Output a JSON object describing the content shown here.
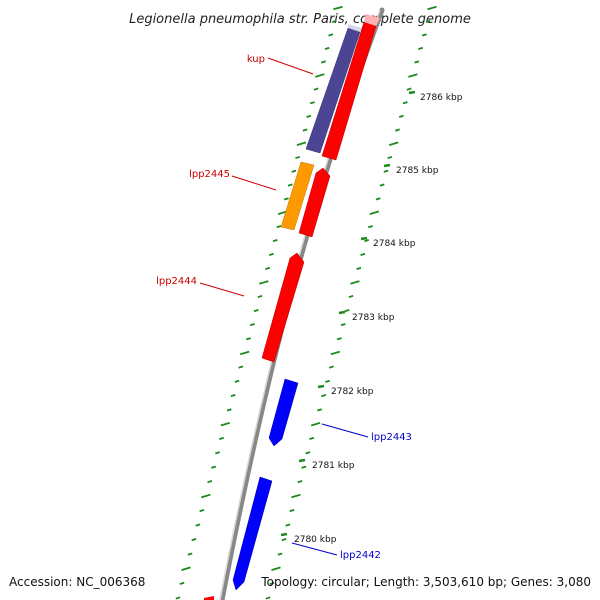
{
  "title": "Legionella pneumophila str. Paris, complete genome",
  "footer": {
    "accession": "Accession: NC_006368",
    "topology": "Topology: circular; Length: 3,503,610 bp; Genes: 3,080"
  },
  "colors": {
    "backbone": "#888888",
    "tick": "#1a8a1a",
    "forward_gene": "#ff0000",
    "reverse_gene": "#0000ff",
    "cds_purple": "#4b4594",
    "cds_orange": "#ff9900",
    "label_red": "#cc0000",
    "label_blue": "#0000cc"
  },
  "kbp_labels": [
    "2786 kbp",
    "2785 kbp",
    "2784 kbp",
    "2783 kbp",
    "2782 kbp",
    "2781 kbp",
    "2780 kbp"
  ],
  "genes": [
    {
      "name": "kup",
      "strand": "forward"
    },
    {
      "name": "lpp2445",
      "strand": "forward"
    },
    {
      "name": "lpp2444",
      "strand": "forward"
    },
    {
      "name": "lpp2443",
      "strand": "reverse"
    },
    {
      "name": "lpp2442",
      "strand": "reverse"
    }
  ]
}
